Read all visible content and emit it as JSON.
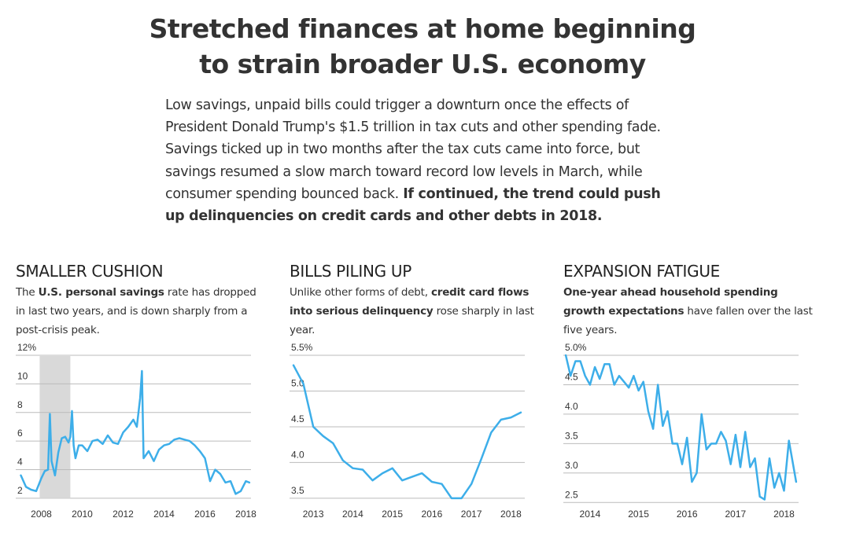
{
  "header": {
    "title_line1": "Stretched finances at home beginning",
    "title_line2": "to strain broader U.S. economy",
    "intro_plain": "Low savings, unpaid bills could trigger a downturn once the effects of President Donald Trump's $1.5 trillion in tax cuts and other spending fade. Savings ticked up in two months after the tax cuts came into force, but savings resumed a slow march toward record low levels in March, while consumer spending bounced back.",
    "intro_bold": "If continued, the trend could push up delinquencies on credit cards and other debts in 2018."
  },
  "panels": [
    {
      "title": "SMALLER CUSHION",
      "desc_pre": "The ",
      "desc_bold": "U.S. personal savings",
      "desc_post": " rate has dropped in last two years, and is down sharply from a post-crisis peak."
    },
    {
      "title": "BILLS PILING UP",
      "desc_pre": "Unlike other forms of debt, ",
      "desc_bold": "credit card flows into serious delinquency",
      "desc_post": " rose sharply in last year."
    },
    {
      "title": "EXPANSION FATIGUE",
      "desc_pre": "",
      "desc_bold": "One-year ahead household spending growth expectations",
      "desc_post": " have fallen over the last five years."
    }
  ],
  "colors": {
    "line": "#3daee9",
    "recession": "#d9d9d9",
    "grid": "#bbbbbb",
    "text": "#333333"
  },
  "chart_data": [
    {
      "type": "line",
      "title": "",
      "xlabel": "",
      "ylabel": "",
      "xlim": [
        2006.75,
        2018.25
      ],
      "ylim": [
        1.5,
        12
      ],
      "yticks": [
        2,
        4,
        6,
        8,
        10,
        12
      ],
      "ytick_labels": [
        "2",
        "4",
        "6",
        "8",
        "10",
        "12%"
      ],
      "xticks": [
        2008,
        2010,
        2012,
        2014,
        2016,
        2018
      ],
      "xtick_labels": [
        "2008",
        "2010",
        "2012",
        "2014",
        "2016",
        "2018"
      ],
      "shaded_x": [
        2007.92,
        2009.42
      ],
      "grid": true,
      "series": [
        {
          "x": [
            2007.0,
            2007.25,
            2007.5,
            2007.75,
            2008.0,
            2008.17,
            2008.33,
            2008.42,
            2008.5,
            2008.67,
            2008.83,
            2009.0,
            2009.17,
            2009.33,
            2009.42,
            2009.5,
            2009.58,
            2009.67,
            2009.83,
            2010.0,
            2010.25,
            2010.5,
            2010.75,
            2011.0,
            2011.25,
            2011.5,
            2011.75,
            2012.0,
            2012.25,
            2012.5,
            2012.67,
            2012.83,
            2012.92,
            2013.0,
            2013.25,
            2013.5,
            2013.75,
            2014.0,
            2014.25,
            2014.5,
            2014.75,
            2015.0,
            2015.25,
            2015.5,
            2015.75,
            2016.0,
            2016.25,
            2016.5,
            2016.75,
            2017.0,
            2017.25,
            2017.5,
            2017.75,
            2018.0,
            2018.17
          ],
          "values": [
            3.6,
            2.8,
            2.6,
            2.5,
            3.4,
            3.9,
            4.0,
            7.9,
            4.6,
            3.6,
            5.2,
            6.2,
            6.3,
            5.9,
            6.3,
            8.1,
            5.7,
            4.8,
            5.7,
            5.7,
            5.3,
            6.0,
            6.1,
            5.8,
            6.4,
            5.9,
            5.8,
            6.6,
            7.0,
            7.5,
            7.0,
            9.0,
            10.9,
            4.8,
            5.3,
            4.6,
            5.4,
            5.7,
            5.8,
            6.1,
            6.2,
            6.1,
            6.0,
            5.7,
            5.3,
            4.8,
            3.2,
            4.0,
            3.7,
            3.1,
            3.2,
            2.3,
            2.5,
            3.2,
            3.1
          ]
        }
      ]
    },
    {
      "type": "line",
      "title": "",
      "xlabel": "",
      "ylabel": "",
      "xlim": [
        2012.4,
        2018.35
      ],
      "ylim": [
        3.4,
        5.5
      ],
      "yticks": [
        3.5,
        4.0,
        4.5,
        5.0,
        5.5
      ],
      "ytick_labels": [
        "3.5",
        "4.0",
        "4.5",
        "5.0",
        "5.5%"
      ],
      "xticks": [
        2013,
        2014,
        2015,
        2016,
        2017,
        2018
      ],
      "xtick_labels": [
        "2013",
        "2014",
        "2015",
        "2016",
        "2017",
        "2018"
      ],
      "grid": true,
      "series": [
        {
          "x": [
            2012.5,
            2012.75,
            2013.0,
            2013.25,
            2013.5,
            2013.75,
            2014.0,
            2014.25,
            2014.5,
            2014.75,
            2015.0,
            2015.25,
            2015.5,
            2015.75,
            2016.0,
            2016.25,
            2016.5,
            2016.75,
            2017.0,
            2017.25,
            2017.5,
            2017.75,
            2018.0,
            2018.25
          ],
          "values": [
            5.36,
            5.1,
            4.5,
            4.37,
            4.27,
            4.03,
            3.92,
            3.9,
            3.75,
            3.85,
            3.92,
            3.75,
            3.8,
            3.85,
            3.73,
            3.7,
            3.5,
            3.5,
            3.7,
            4.05,
            4.42,
            4.6,
            4.63,
            4.7
          ]
        }
      ]
    },
    {
      "type": "line",
      "title": "",
      "xlabel": "",
      "ylabel": "",
      "xlim": [
        2013.45,
        2018.3
      ],
      "ylim": [
        2.45,
        5.0
      ],
      "yticks": [
        2.5,
        3.0,
        3.5,
        4.0,
        4.5,
        5.0
      ],
      "ytick_labels": [
        "2.5",
        "3.0",
        "3.5",
        "4.0",
        "4.5",
        "5.0%"
      ],
      "xticks": [
        2014,
        2015,
        2016,
        2017,
        2018
      ],
      "xtick_labels": [
        "2014",
        "2015",
        "2016",
        "2017",
        "2018"
      ],
      "grid": true,
      "series": [
        {
          "x": [
            2013.5,
            2013.6,
            2013.7,
            2013.8,
            2013.9,
            2014.0,
            2014.1,
            2014.2,
            2014.3,
            2014.4,
            2014.5,
            2014.6,
            2014.7,
            2014.8,
            2014.9,
            2015.0,
            2015.1,
            2015.2,
            2015.3,
            2015.4,
            2015.5,
            2015.6,
            2015.7,
            2015.8,
            2015.9,
            2016.0,
            2016.1,
            2016.2,
            2016.3,
            2016.4,
            2016.5,
            2016.6,
            2016.7,
            2016.8,
            2016.9,
            2017.0,
            2017.1,
            2017.2,
            2017.3,
            2017.4,
            2017.5,
            2017.6,
            2017.7,
            2017.8,
            2017.9,
            2018.0,
            2018.1,
            2018.25
          ],
          "values": [
            5.0,
            4.65,
            4.9,
            4.9,
            4.65,
            4.5,
            4.8,
            4.6,
            4.85,
            4.85,
            4.5,
            4.65,
            4.55,
            4.45,
            4.65,
            4.4,
            4.55,
            4.05,
            3.75,
            4.5,
            3.8,
            4.05,
            3.5,
            3.5,
            3.15,
            3.6,
            2.85,
            3.0,
            4.0,
            3.4,
            3.5,
            3.5,
            3.7,
            3.55,
            3.15,
            3.65,
            3.1,
            3.7,
            3.1,
            3.25,
            2.6,
            2.55,
            3.25,
            2.75,
            3.0,
            2.7,
            3.55,
            2.85
          ]
        }
      ]
    }
  ]
}
